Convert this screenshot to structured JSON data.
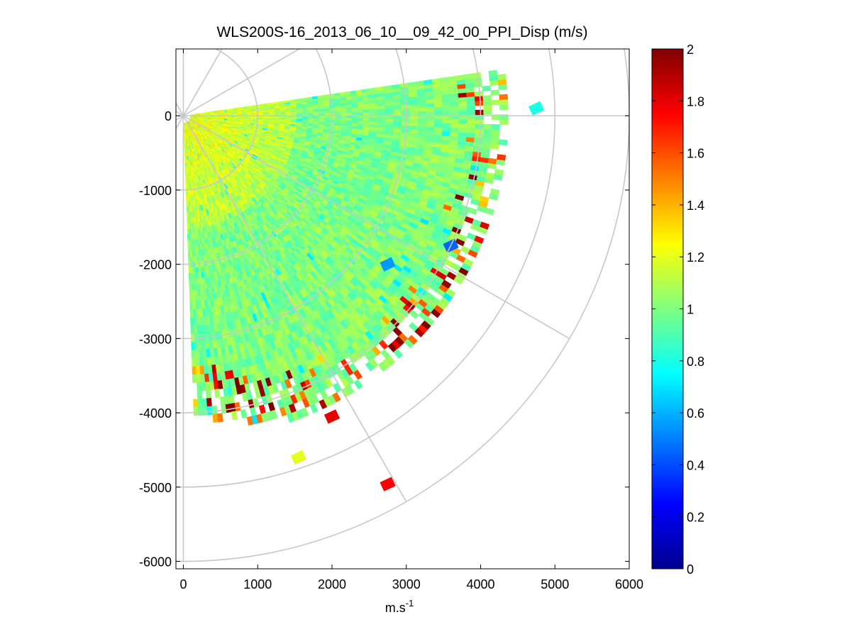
{
  "chart_data": {
    "type": "heatmap",
    "subtype": "polar-ppi-scan",
    "title": "WLS200S-16_2013_06_10__09_42_00_PPI_Disp (m/s)",
    "xlabel": "m.s",
    "xlabel_sup": "-1",
    "ylabel": "",
    "xlim": [
      -100,
      6000
    ],
    "ylim": [
      -6100,
      900
    ],
    "xticks": [
      0,
      1000,
      2000,
      3000,
      4000,
      5000,
      6000
    ],
    "xtick_labels": [
      "0",
      "1000",
      "2000",
      "3000",
      "4000",
      "5000",
      "6000"
    ],
    "yticks": [
      0,
      -1000,
      -2000,
      -3000,
      -4000,
      -5000,
      -6000
    ],
    "ytick_labels": [
      "0",
      "-1000",
      "-2000",
      "-3000",
      "-4000",
      "-5000",
      "-6000"
    ],
    "grid": true,
    "polar_grid": {
      "range_rings_m": [
        1000,
        2000,
        3000,
        4000,
        5000,
        6000
      ],
      "radial_spokes_deg": [
        0,
        30,
        60,
        90,
        120,
        150,
        180,
        210,
        240,
        270,
        300,
        330
      ]
    },
    "scan": {
      "azimuth_start_deg": -88,
      "azimuth_end_deg": 8,
      "range_start_m": 100,
      "range_end_m": 4300,
      "colormap": "jet"
    },
    "colorbar": {
      "min": 0,
      "max": 2,
      "ticks": [
        0,
        0.2,
        0.4,
        0.6,
        0.8,
        1,
        1.2,
        1.4,
        1.6,
        1.8,
        2
      ],
      "tick_labels": [
        "0",
        "0.2",
        "0.4",
        "0.6",
        "0.8",
        "1",
        "1.2",
        "1.4",
        "1.6",
        "1.8",
        "2"
      ]
    },
    "isolated_cells": [
      {
        "x": 1550,
        "y": -4600,
        "value": 1.2
      },
      {
        "x": 2750,
        "y": -4960,
        "value": 1.75
      },
      {
        "x": 2000,
        "y": -4050,
        "value": 1.8
      },
      {
        "x": 4750,
        "y": 100,
        "value": 0.8
      },
      {
        "x": 3600,
        "y": -1750,
        "value": 0.45
      },
      {
        "x": 2750,
        "y": -2000,
        "value": 0.55
      }
    ]
  }
}
